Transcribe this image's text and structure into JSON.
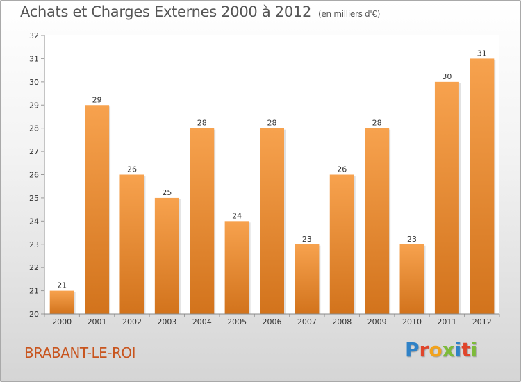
{
  "page": {
    "title": "Achats et Charges Externes 2000 à 2012",
    "unit": "(en milliers d'€)",
    "place": "BRABANT-LE-ROI",
    "logo": "Proxiti"
  },
  "colors": {
    "bar_light": "#f7a24e",
    "bar_dark": "#d2731c",
    "place_text": "#c8541d",
    "logo_letters": [
      "#2f82c7",
      "#e0452b",
      "#f2a31d",
      "#7dbb3a",
      "#2f82c7",
      "#e0452b",
      "#7dbb3a"
    ]
  },
  "chart_data": {
    "type": "bar",
    "title": "Achats et Charges Externes 2000 à 2012",
    "subtitle": "(en milliers d'€)",
    "categories": [
      "2000",
      "2001",
      "2002",
      "2003",
      "2004",
      "2005",
      "2006",
      "2007",
      "2008",
      "2009",
      "2010",
      "2011",
      "2012"
    ],
    "values": [
      21,
      29,
      26,
      25,
      28,
      24,
      28,
      23,
      26,
      28,
      23,
      30,
      31
    ],
    "ylim": [
      20,
      32
    ],
    "yticks": [
      20,
      21,
      22,
      23,
      24,
      25,
      26,
      27,
      28,
      29,
      30,
      31,
      32
    ],
    "grid": false,
    "xlabel": "",
    "ylabel": ""
  }
}
